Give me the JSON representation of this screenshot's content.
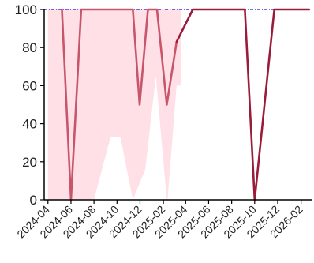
{
  "chart_data": {
    "type": "line",
    "title": "",
    "xlabel": "",
    "ylabel": "",
    "ylim": [
      0,
      100
    ],
    "y_ticks": [
      0,
      20,
      40,
      60,
      80,
      100
    ],
    "x_range": [
      "2024-03-22",
      "2026-03-01"
    ],
    "x_ticks": [
      "2024-04",
      "2024-06",
      "2024-08",
      "2024-10",
      "2024-12",
      "2025-02",
      "2025-04",
      "2025-06",
      "2025-08",
      "2025-10",
      "2025-12",
      "2026-02"
    ],
    "grid": false,
    "legend": "none",
    "series": [
      {
        "style": "line",
        "color": "#c8566b",
        "points": [
          {
            "x": "2024-05-08",
            "y": 100
          },
          {
            "x": "2024-06-01",
            "y": 0
          },
          {
            "x": "2024-06-28",
            "y": 100
          },
          {
            "x": "2024-07-15",
            "y": 100
          },
          {
            "x": "2024-11-12",
            "y": 100
          },
          {
            "x": "2024-11-30",
            "y": 50
          },
          {
            "x": "2024-12-22",
            "y": 100
          },
          {
            "x": "2025-01-15",
            "y": 100
          },
          {
            "x": "2025-02-10",
            "y": 50
          },
          {
            "x": "2025-03-08",
            "y": 83
          }
        ]
      },
      {
        "style": "line",
        "color": "#9b1b3a",
        "points": [
          {
            "x": "2025-03-08",
            "y": 83
          },
          {
            "x": "2025-04-20",
            "y": 100
          },
          {
            "x": "2025-09-05",
            "y": 100
          },
          {
            "x": "2025-10-01",
            "y": 0
          },
          {
            "x": "2025-11-22",
            "y": 100
          },
          {
            "x": "2026-02-22",
            "y": 100
          }
        ]
      }
    ],
    "band": {
      "color": "#ffe0e6",
      "upper": [
        {
          "x": "2024-04-01",
          "y": 100
        },
        {
          "x": "2025-03-20",
          "y": 100
        }
      ],
      "lower": [
        {
          "x": "2024-04-01",
          "y": 0
        },
        {
          "x": "2024-08-01",
          "y": 0
        },
        {
          "x": "2024-09-14",
          "y": 33
        },
        {
          "x": "2024-10-10",
          "y": 33
        },
        {
          "x": "2024-11-12",
          "y": 0
        },
        {
          "x": "2024-12-15",
          "y": 16
        },
        {
          "x": "2025-01-12",
          "y": 65
        },
        {
          "x": "2025-02-10",
          "y": 0
        },
        {
          "x": "2025-02-12",
          "y": 0
        },
        {
          "x": "2025-03-08",
          "y": 60
        },
        {
          "x": "2025-03-20",
          "y": 60
        }
      ]
    },
    "reference_line": {
      "y": 100,
      "color": "#1a1adb",
      "style": "dash-dot"
    }
  }
}
